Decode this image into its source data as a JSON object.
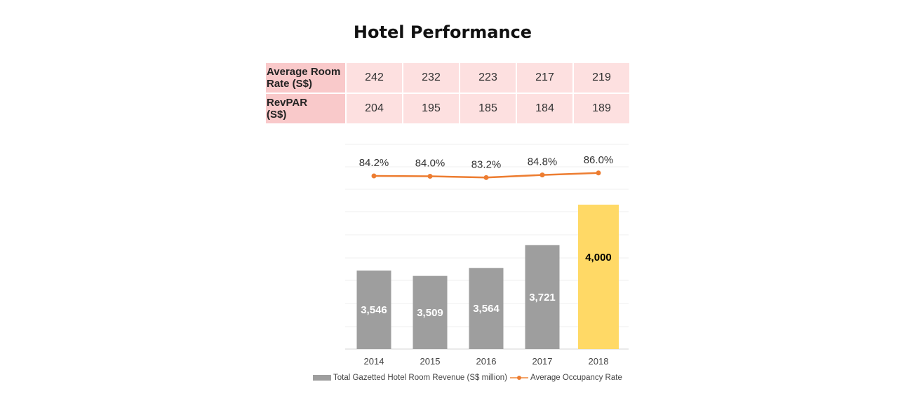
{
  "title": "Hotel Performance",
  "table": {
    "rows": [
      {
        "label": "Average Room\nRate (S$)",
        "values": [
          "242",
          "232",
          "223",
          "217",
          "219"
        ]
      },
      {
        "label": "RevPAR\n (S$)",
        "values": [
          "204",
          "195",
          "185",
          "184",
          "189"
        ]
      }
    ]
  },
  "colors": {
    "bar": "#9e9e9e",
    "bar_highlight": "#ffd966",
    "line": "#ed7d31",
    "table_cell": "#fde0e0",
    "table_header": "#f9c9ca"
  },
  "chart_data": {
    "type": "bar",
    "categories": [
      "2014",
      "2015",
      "2016",
      "2017",
      "2018"
    ],
    "series": [
      {
        "name": "Total Gazetted Hotel Room Revenue (S$ million)",
        "type": "bar",
        "values": [
          3546,
          3509,
          3564,
          3721,
          4000
        ],
        "labels": [
          "3,546",
          "3,509",
          "3,564",
          "3,721",
          "4,000"
        ]
      },
      {
        "name": "Average Occupancy Rate",
        "type": "line",
        "values": [
          84.2,
          84.0,
          83.2,
          84.8,
          86.0
        ],
        "labels": [
          "84.2%",
          "84.0%",
          "83.2%",
          "84.8%",
          "86.0%"
        ]
      }
    ],
    "legend": "bottom",
    "grid": true
  }
}
